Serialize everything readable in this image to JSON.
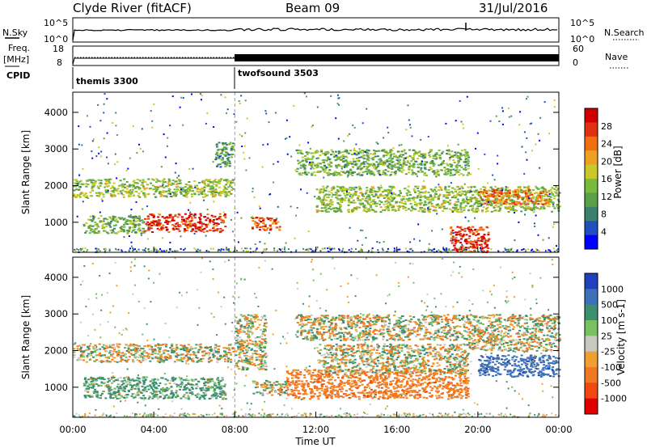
{
  "header": {
    "station": "Clyde River (fitACF)",
    "beam": "Beam 09",
    "date": "31/Jul/2016"
  },
  "top_panels": {
    "nsky_label": "N.Sky",
    "nsky_ticks": [
      "10^5",
      "10^0"
    ],
    "nsearch_label": "N.Search",
    "nsearch_ticks": [
      "10^5",
      "10^0"
    ],
    "freq_label": "Freq.",
    "freq_unit": "[MHz]",
    "freq_ticks": [
      "18",
      "8"
    ],
    "nave_label": "Nave",
    "nave_ticks": [
      "60",
      "0"
    ],
    "cpid_label": "CPID",
    "cpid_segments": [
      "themis 3300",
      "twofsound 3503"
    ]
  },
  "colors": {
    "power": [
      "#0000ff",
      "#2050c0",
      "#3c8070",
      "#5aa048",
      "#78bc3c",
      "#c8c828",
      "#f0a020",
      "#f07010",
      "#e03010",
      "#d00000"
    ],
    "velocity": [
      "#2040c0",
      "#3c70b8",
      "#3c9070",
      "#78c060",
      "#c8c8c0",
      "#f0a030",
      "#f07820",
      "#f04810",
      "#e00000"
    ]
  },
  "chart_data": [
    {
      "type": "heatmap",
      "title": "Power",
      "ylabel": "Slant Range [km]",
      "colorbar_label": "Power [dB]",
      "colorbar_ticks": [
        "28",
        "24",
        "20",
        "16",
        "12",
        "8",
        "4"
      ],
      "yticks": [
        "4000",
        "3000",
        "2000",
        "1000"
      ],
      "xticks": [
        "00:00",
        "04:00",
        "08:00",
        "12:00",
        "16:00",
        "20:00",
        "00:00"
      ],
      "xlim": [
        0,
        24
      ],
      "ylim": [
        180,
        4550
      ],
      "regions": [
        {
          "x": [
            0.0,
            7.9
          ],
          "y": [
            1700,
            2200
          ],
          "value": 14
        },
        {
          "x": [
            0.5,
            3.5
          ],
          "y": [
            700,
            1200
          ],
          "value": 12
        },
        {
          "x": [
            3.5,
            7.5
          ],
          "y": [
            750,
            1250
          ],
          "value": 26
        },
        {
          "x": [
            8.8,
            10.2
          ],
          "y": [
            800,
            1150
          ],
          "value": 24
        },
        {
          "x": [
            7.0,
            7.9
          ],
          "y": [
            2500,
            3200
          ],
          "value": 10
        },
        {
          "x": [
            11.0,
            19.5
          ],
          "y": [
            2300,
            3000
          ],
          "value": 12
        },
        {
          "x": [
            12.0,
            24.0
          ],
          "y": [
            1300,
            2000
          ],
          "value": 14
        },
        {
          "x": [
            20.0,
            23.5
          ],
          "y": [
            1500,
            1900
          ],
          "value": 22
        },
        {
          "x": [
            18.6,
            20.5
          ],
          "y": [
            200,
            900
          ],
          "value": 26
        }
      ],
      "scatter_colors": [
        "#0000ff",
        "#2050c0",
        "#3c8070",
        "#5aa048",
        "#c8c828"
      ]
    },
    {
      "type": "heatmap",
      "title": "Velocity",
      "ylabel": "Slant Range [km]",
      "colorbar_label": "Velocity [m s-1]",
      "colorbar_ticks": [
        "1000",
        "500",
        "100",
        "25",
        "-25",
        "-100",
        "-500",
        "-1000"
      ],
      "yticks": [
        "4000",
        "3000",
        "2000",
        "1000"
      ],
      "xticks": [
        "00:00",
        "04:00",
        "08:00",
        "12:00",
        "16:00",
        "20:00",
        "00:00"
      ],
      "xlabel": "Time UT",
      "xlim": [
        0,
        24
      ],
      "ylim": [
        180,
        4550
      ],
      "regions": [
        {
          "x": [
            0.0,
            7.9
          ],
          "y": [
            1700,
            2200
          ],
          "value": 0
        },
        {
          "x": [
            0.5,
            7.5
          ],
          "y": [
            700,
            1300
          ],
          "value": 200
        },
        {
          "x": [
            8.0,
            9.5
          ],
          "y": [
            1500,
            3000
          ],
          "value": 0
        },
        {
          "x": [
            8.8,
            10.5
          ],
          "y": [
            800,
            1200
          ],
          "value": 0
        },
        {
          "x": [
            10.5,
            19.5
          ],
          "y": [
            700,
            1500
          ],
          "value": -300
        },
        {
          "x": [
            11.0,
            19.5
          ],
          "y": [
            2300,
            3000
          ],
          "value": 0
        },
        {
          "x": [
            12.0,
            19.5
          ],
          "y": [
            1400,
            2200
          ],
          "value": 0
        },
        {
          "x": [
            20.0,
            24.0
          ],
          "y": [
            1300,
            1900
          ],
          "value": 800
        },
        {
          "x": [
            19.5,
            24.0
          ],
          "y": [
            2000,
            3000
          ],
          "value": 0
        }
      ],
      "scatter_colors": [
        "#c8c8c0",
        "#78c060",
        "#3c9070",
        "#f0a030"
      ]
    }
  ]
}
